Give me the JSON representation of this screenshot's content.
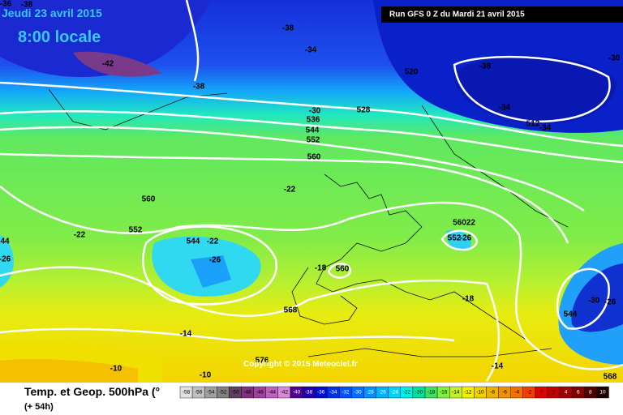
{
  "header": {
    "date": "Jeudi 23 avril 2015",
    "time": "8:00 locale",
    "run": "Run GFS 0 Z du Mardi 21 avril 2015"
  },
  "map": {
    "labels": [
      "-36",
      "-38",
      "-38",
      "-34",
      "-42",
      "-38",
      "520",
      "-38",
      "-30",
      "-34",
      "512",
      "-34",
      "-30",
      "528",
      "536",
      "544",
      "552",
      "560",
      "-22",
      "560",
      "552",
      "544",
      "-22",
      "-26",
      "-22",
      "56022",
      "552",
      "-26",
      "-18",
      "560",
      "568",
      "-18",
      "-30",
      "-26",
      "544",
      "-14",
      "-10",
      "-10",
      "576",
      "-14",
      "568",
      "44",
      "-26"
    ],
    "copyright": "Copyright © 2015 Meteociel.fr"
  },
  "legend": {
    "title": "Temp. et Geop. 500hPa (°",
    "lead": "(+ 54h)",
    "scale": [
      -58,
      -56,
      -54,
      -52,
      -50,
      -48,
      -46,
      -44,
      -42,
      -40,
      -38,
      -36,
      -34,
      -32,
      -30,
      -28,
      -26,
      -24,
      -22,
      -20,
      -18,
      -16,
      -14,
      -12,
      -10,
      -8,
      -6,
      -4,
      -2,
      0,
      2,
      4,
      6,
      8,
      10
    ]
  }
}
